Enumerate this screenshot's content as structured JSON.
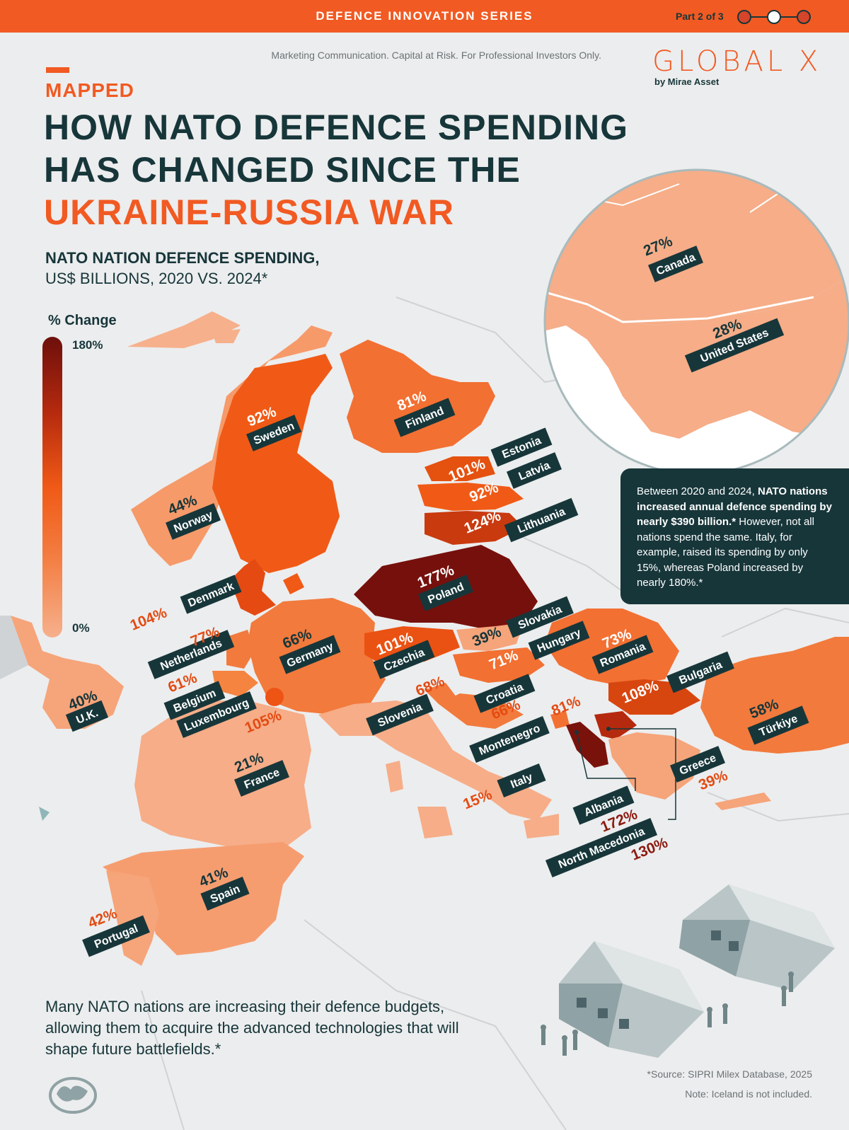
{
  "header": {
    "series": "DEFENCE INNOVATION SERIES",
    "part": "Part 2 of 3",
    "disclaimer": "Marketing Communication. Capital at Risk. For Professional Investors Only.",
    "brand": "GLOBAL X",
    "brand_sub": "by Mirae Asset"
  },
  "headline": {
    "kicker": "MAPPED",
    "line1": "HOW NATO DEFENCE SPENDING",
    "line2": "HAS CHANGED SINCE THE",
    "line3": "UKRAINE-RUSSIA WAR"
  },
  "subtitle": {
    "line1": "NATO NATION DEFENCE SPENDING,",
    "line2": "US$ BILLIONS, 2020 VS. 2024*"
  },
  "legend": {
    "title": "% Change",
    "max": "180%",
    "min": "0%",
    "colors": [
      "#6d0f0c",
      "#b52a0e",
      "#f05a16",
      "#f37b3f",
      "#f6b08c"
    ]
  },
  "countries": [
    {
      "name": "Canada",
      "change": "27%"
    },
    {
      "name": "United States",
      "change": "28%"
    },
    {
      "name": "Sweden",
      "change": "92%"
    },
    {
      "name": "Finland",
      "change": "81%"
    },
    {
      "name": "Norway",
      "change": "44%"
    },
    {
      "name": "Estonia",
      "change": "101%"
    },
    {
      "name": "Latvia",
      "change": "92%"
    },
    {
      "name": "Lithuania",
      "change": "124%"
    },
    {
      "name": "Denmark",
      "change": "104%"
    },
    {
      "name": "Poland",
      "change": "177%"
    },
    {
      "name": "Netherlands",
      "change": "77%"
    },
    {
      "name": "Germany",
      "change": "66%"
    },
    {
      "name": "Belgium",
      "change": "61%"
    },
    {
      "name": "Luxembourg",
      "change": "105%"
    },
    {
      "name": "U.K.",
      "change": "40%"
    },
    {
      "name": "Czechia",
      "change": "101%"
    },
    {
      "name": "Slovakia",
      "change": "39%"
    },
    {
      "name": "Hungary",
      "change": "71%"
    },
    {
      "name": "Romania",
      "change": "73%"
    },
    {
      "name": "Slovenia",
      "change": "68%"
    },
    {
      "name": "Croatia",
      "change": "66%"
    },
    {
      "name": "Bulgaria",
      "change": "108%"
    },
    {
      "name": "Montenegro",
      "change": "81%"
    },
    {
      "name": "Türkiye",
      "change": "58%"
    },
    {
      "name": "France",
      "change": "21%"
    },
    {
      "name": "Italy",
      "change": "15%"
    },
    {
      "name": "Greece",
      "change": "39%"
    },
    {
      "name": "Albania",
      "change": "172%"
    },
    {
      "name": "North Macedonia",
      "change": "130%"
    },
    {
      "name": "Spain",
      "change": "41%"
    },
    {
      "name": "Portugal",
      "change": "42%"
    }
  ],
  "infobox": {
    "t1": "Between 2020 and 2024, ",
    "b1": "NATO nations increased annual defence spending by nearly $390 billion.*",
    "t2": " However, not all nations spend the same. Italy, for example, raised its spending by only 15%, whereas Poland increased by nearly 180%.*"
  },
  "footer": {
    "text": "Many NATO nations are increasing their defence budgets, allowing them to acquire the advanced technologies that will shape future battlefields.*",
    "source": "*Source: SIPRI Milex Database, 2025",
    "note": "Note: Iceland is not included."
  }
}
